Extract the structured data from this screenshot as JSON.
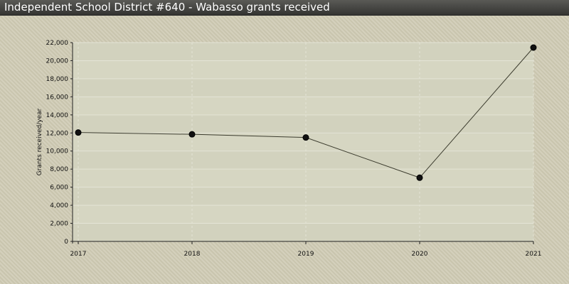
{
  "header": {
    "title": "Independent School District #640 - Wabasso grants received"
  },
  "colors": {
    "line": "#3c3c2e",
    "marker": "#111111",
    "plot_bg": "#d6d6c2",
    "band": "#cfcfba"
  },
  "chart_data": {
    "type": "line",
    "title": "Independent School District #640 - Wabasso grants received",
    "xlabel": "",
    "ylabel": "Grants received/year",
    "x": [
      "2017",
      "2018",
      "2019",
      "2020",
      "2021"
    ],
    "series": [
      {
        "values": [
          12050,
          11850,
          11500,
          7050,
          21450
        ]
      }
    ],
    "ylim": [
      0,
      22000
    ],
    "yticks": [
      0,
      2000,
      4000,
      6000,
      8000,
      10000,
      12000,
      14000,
      16000,
      18000,
      20000,
      22000
    ],
    "ytick_labels": [
      "0",
      "2,000",
      "4,000",
      "6,000",
      "8,000",
      "10,000",
      "12,000",
      "14,000",
      "16,000",
      "18,000",
      "20,000",
      "22,000"
    ],
    "grid": true,
    "legend": "none"
  }
}
